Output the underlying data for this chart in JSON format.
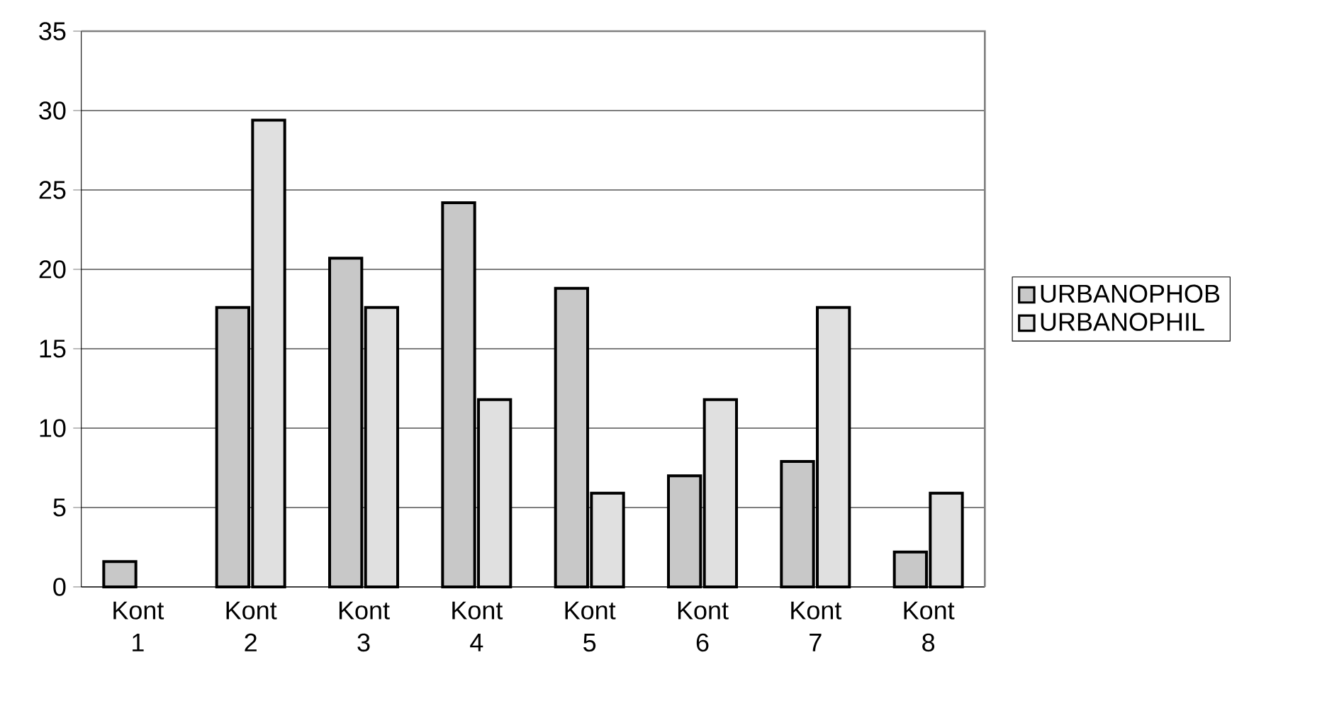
{
  "chart_data": {
    "type": "bar",
    "categories": [
      "Kont 1",
      "Kont 2",
      "Kont 3",
      "Kont 4",
      "Kont 5",
      "Kont 6",
      "Kont 7",
      "Kont 8"
    ],
    "series": [
      {
        "name": "URBANOPHOB",
        "color": "#c8c8c8",
        "values": [
          1.6,
          17.6,
          20.7,
          24.2,
          18.8,
          7.0,
          7.9,
          2.2
        ]
      },
      {
        "name": "URBANOPHIL",
        "color": "#e0e0e0",
        "values": [
          null,
          29.4,
          17.6,
          11.8,
          5.9,
          11.8,
          17.6,
          5.9
        ]
      }
    ],
    "ylim": [
      0,
      35
    ],
    "yticks": [
      0,
      5,
      10,
      15,
      20,
      25,
      30,
      35
    ],
    "grid": "y",
    "legend": "right"
  }
}
